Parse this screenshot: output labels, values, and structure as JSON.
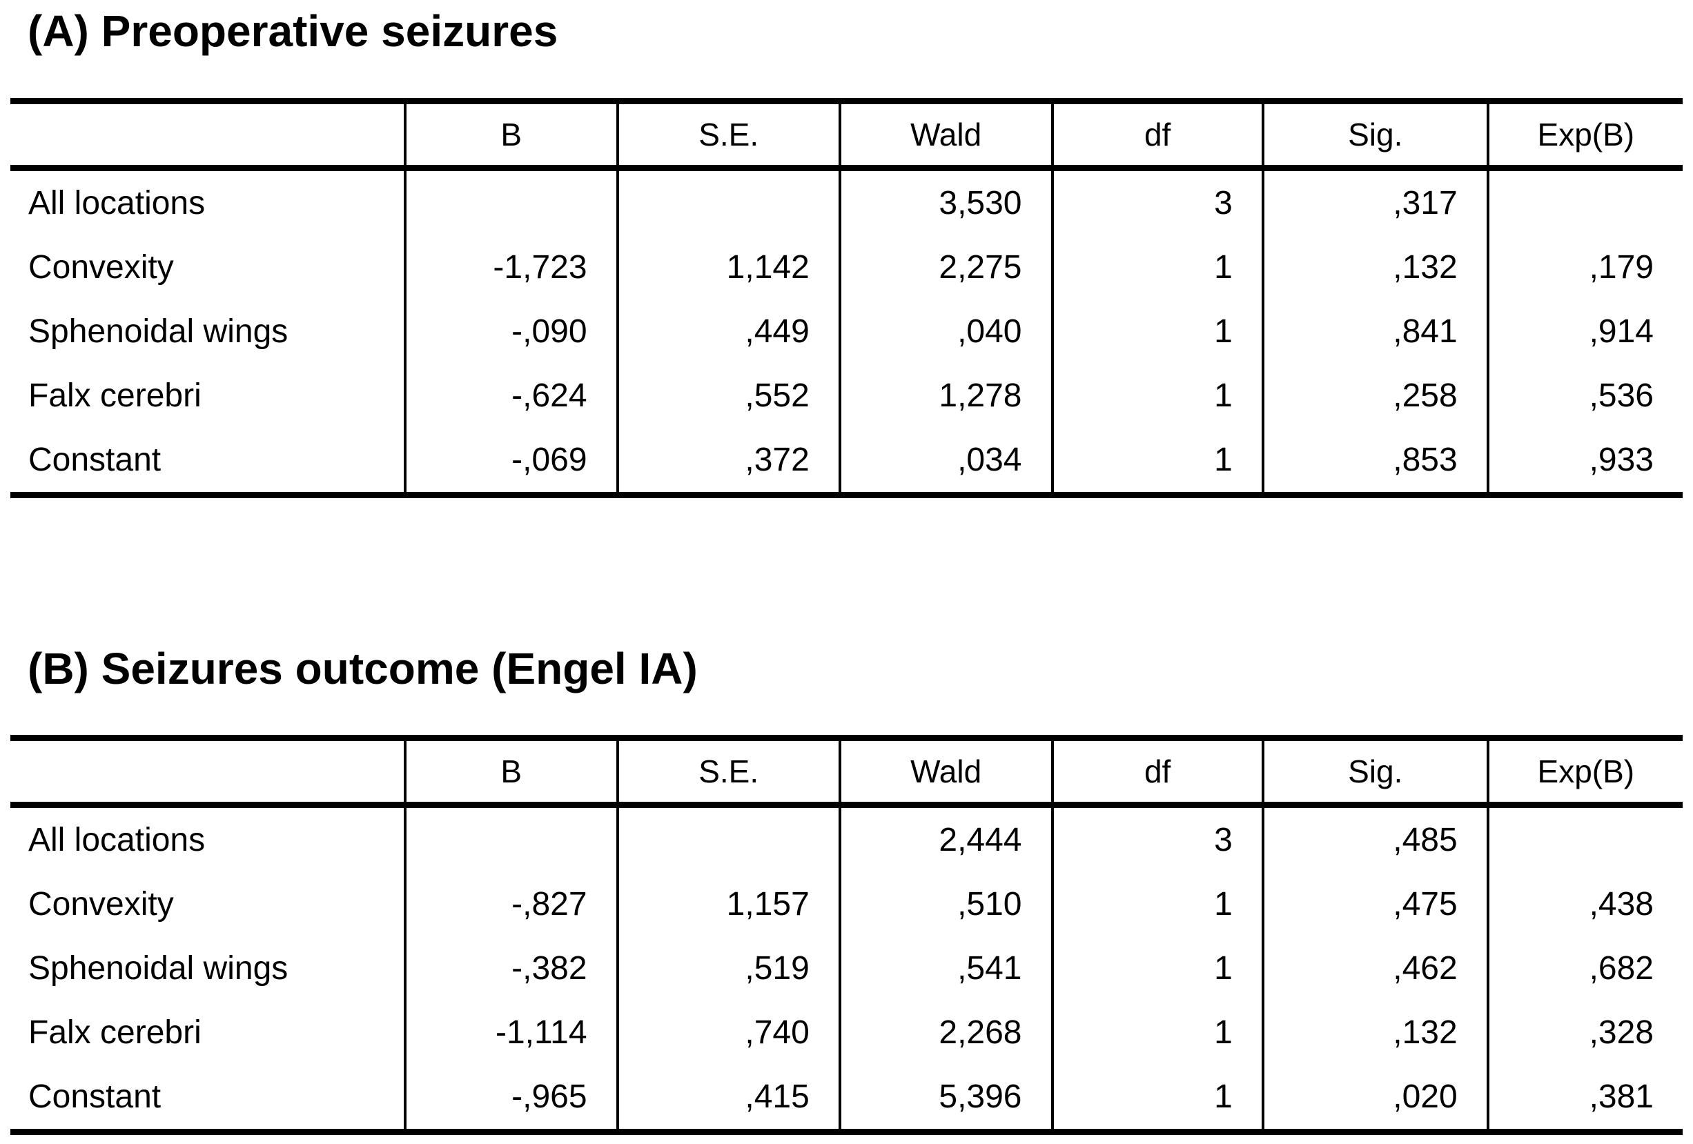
{
  "section_a": {
    "title": "(A) Preoperative seizures",
    "columns": {
      "stub": "",
      "b": "B",
      "se": "S.E.",
      "wald": "Wald",
      "df": "df",
      "sig": "Sig.",
      "expb": "Exp(B)"
    },
    "rows": [
      {
        "label": "All locations",
        "b": "",
        "se": "",
        "wald": "3,530",
        "df": "3",
        "sig": ",317",
        "expb": ""
      },
      {
        "label": "Convexity",
        "b": "-1,723",
        "se": "1,142",
        "wald": "2,275",
        "df": "1",
        "sig": ",132",
        "expb": ",179"
      },
      {
        "label": "Sphenoidal wings",
        "b": "-,090",
        "se": ",449",
        "wald": ",040",
        "df": "1",
        "sig": ",841",
        "expb": ",914"
      },
      {
        "label": "Falx cerebri",
        "b": "-,624",
        "se": ",552",
        "wald": "1,278",
        "df": "1",
        "sig": ",258",
        "expb": ",536"
      },
      {
        "label": "Constant",
        "b": "-,069",
        "se": ",372",
        "wald": ",034",
        "df": "1",
        "sig": ",853",
        "expb": ",933"
      }
    ]
  },
  "section_b": {
    "title": "(B) Seizures outcome (Engel IA)",
    "columns": {
      "stub": "",
      "b": "B",
      "se": "S.E.",
      "wald": "Wald",
      "df": "df",
      "sig": "Sig.",
      "expb": "Exp(B)"
    },
    "rows": [
      {
        "label": "All locations",
        "b": "",
        "se": "",
        "wald": "2,444",
        "df": "3",
        "sig": ",485",
        "expb": ""
      },
      {
        "label": "Convexity",
        "b": "-,827",
        "se": "1,157",
        "wald": ",510",
        "df": "1",
        "sig": ",475",
        "expb": ",438"
      },
      {
        "label": "Sphenoidal wings",
        "b": "-,382",
        "se": ",519",
        "wald": ",541",
        "df": "1",
        "sig": ",462",
        "expb": ",682"
      },
      {
        "label": "Falx cerebri",
        "b": "-1,114",
        "se": ",740",
        "wald": "2,268",
        "df": "1",
        "sig": ",132",
        "expb": ",328"
      },
      {
        "label": "Constant",
        "b": "-,965",
        "se": ",415",
        "wald": "5,396",
        "df": "1",
        "sig": ",020",
        "expb": ",381"
      }
    ]
  },
  "colors": {
    "text": "#000000",
    "background": "#ffffff",
    "rule": "#000000"
  }
}
